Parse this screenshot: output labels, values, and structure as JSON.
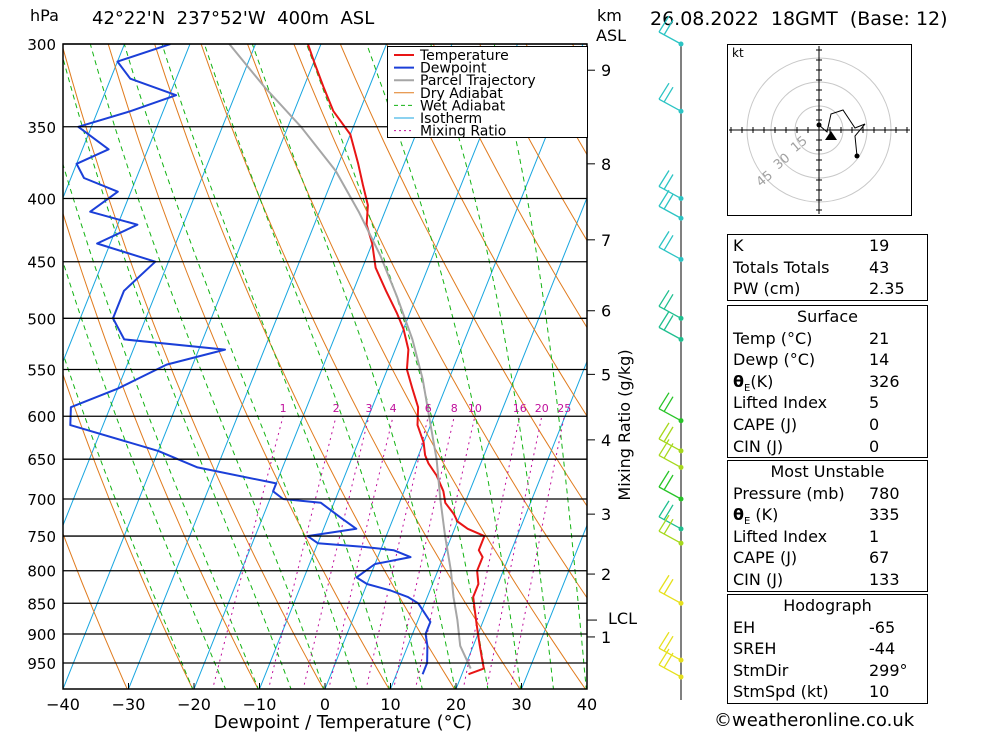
{
  "header": {
    "pressure_unit": "hPa",
    "location": "42°22'N  237°52'W  400m  ASL",
    "km_label": "km",
    "asl_label": "ASL",
    "datetime": "26.08.2022  18GMT  (Base: 12)"
  },
  "chart_data": {
    "type": "line",
    "title": "Skew-T log-P diagram",
    "xlabel": "Dewpoint / Temperature (°C)",
    "ylabel": "hPa",
    "x_ticks": [
      -40,
      -30,
      -20,
      -10,
      0,
      10,
      20,
      30,
      40
    ],
    "x_tick_labels": [
      "−40",
      "−30",
      "−20",
      "−10",
      "0",
      "10",
      "20",
      "30",
      "40"
    ],
    "p_ticks": [
      300,
      350,
      400,
      450,
      500,
      550,
      600,
      650,
      700,
      750,
      800,
      850,
      900,
      950
    ],
    "p_range": [
      300,
      1000
    ],
    "km_ticks": [
      {
        "label": "9",
        "p": 315
      },
      {
        "label": "8",
        "p": 375
      },
      {
        "label": "7",
        "p": 432
      },
      {
        "label": "6",
        "p": 493
      },
      {
        "label": "5",
        "p": 555
      },
      {
        "label": "4",
        "p": 627
      },
      {
        "label": "3",
        "p": 720
      },
      {
        "label": "2",
        "p": 805
      },
      {
        "label": "1",
        "p": 905
      }
    ],
    "lcl": {
      "label": "LCL",
      "p": 877
    },
    "mixing_ratio_label": "Mixing Ratio (g/kg)",
    "mixing_ratios": [
      "1",
      "2",
      "3",
      "4",
      "6",
      "8",
      "10",
      "16",
      "20",
      "25"
    ],
    "legend": [
      "Temperature",
      "Dewpoint",
      "Parcel Trajectory",
      "Dry Adiabat",
      "Wet Adiabat",
      "Isotherm",
      "Mixing Ratio"
    ],
    "series": [
      {
        "name": "Temperature",
        "points": [
          [
            21,
            970
          ],
          [
            23,
            960
          ],
          [
            22,
            940
          ],
          [
            21,
            920
          ],
          [
            20,
            900
          ],
          [
            19,
            880
          ],
          [
            18,
            860
          ],
          [
            17,
            840
          ],
          [
            17,
            820
          ],
          [
            16,
            800
          ],
          [
            16,
            780
          ],
          [
            15,
            770
          ],
          [
            15,
            750
          ],
          [
            12,
            740
          ],
          [
            10,
            730
          ],
          [
            9,
            720
          ],
          [
            7,
            705
          ],
          [
            6,
            690
          ],
          [
            4,
            670
          ],
          [
            2,
            655
          ],
          [
            1,
            645
          ],
          [
            0,
            630
          ],
          [
            -2,
            610
          ],
          [
            -3,
            590
          ],
          [
            -5,
            570
          ],
          [
            -7,
            550
          ],
          [
            -8,
            530
          ],
          [
            -10,
            510
          ],
          [
            -12,
            495
          ],
          [
            -15,
            475
          ],
          [
            -18,
            455
          ],
          [
            -20,
            435
          ],
          [
            -22,
            420
          ],
          [
            -23,
            405
          ],
          [
            -25,
            390
          ],
          [
            -27,
            375
          ],
          [
            -30,
            355
          ],
          [
            -34,
            340
          ],
          [
            -37,
            325
          ],
          [
            -40,
            310
          ],
          [
            -42,
            300
          ]
        ]
      },
      {
        "name": "Dewpoint",
        "points": [
          [
            14,
            970
          ],
          [
            14,
            950
          ],
          [
            13,
            920
          ],
          [
            12,
            900
          ],
          [
            12,
            880
          ],
          [
            10,
            860
          ],
          [
            9,
            850
          ],
          [
            7,
            840
          ],
          [
            4,
            830
          ],
          [
            0,
            820
          ],
          [
            -2,
            810
          ],
          [
            0,
            790
          ],
          [
            5,
            780
          ],
          [
            2,
            770
          ],
          [
            -3,
            765
          ],
          [
            -10,
            760
          ],
          [
            -12,
            750
          ],
          [
            -5,
            740
          ],
          [
            -8,
            725
          ],
          [
            -12,
            705
          ],
          [
            -18,
            700
          ],
          [
            -20,
            690
          ],
          [
            -20,
            680
          ],
          [
            -33,
            660
          ],
          [
            -40,
            640
          ],
          [
            -55,
            610
          ],
          [
            -56,
            590
          ],
          [
            -50,
            570
          ],
          [
            -44,
            545
          ],
          [
            -36,
            530
          ],
          [
            -52,
            520
          ],
          [
            -55,
            500
          ],
          [
            -55,
            475
          ],
          [
            -52,
            450
          ],
          [
            -62,
            435
          ],
          [
            -57,
            420
          ],
          [
            -65,
            410
          ],
          [
            -62,
            395
          ],
          [
            -68,
            385
          ],
          [
            -70,
            375
          ],
          [
            -66,
            365
          ],
          [
            -72,
            350
          ],
          [
            -65,
            340
          ],
          [
            -59,
            330
          ],
          [
            -67,
            320
          ],
          [
            -70,
            310
          ],
          [
            -63,
            300
          ]
        ]
      },
      {
        "name": "Parcel Trajectory",
        "points": [
          [
            21,
            960
          ],
          [
            18,
            920
          ],
          [
            16,
            877
          ],
          [
            14,
            840
          ],
          [
            12,
            800
          ],
          [
            9,
            750
          ],
          [
            6,
            700
          ],
          [
            3,
            650
          ],
          [
            0,
            610
          ],
          [
            -4,
            560
          ],
          [
            -8,
            520
          ],
          [
            -13,
            480
          ],
          [
            -18,
            445
          ],
          [
            -24,
            410
          ],
          [
            -30,
            380
          ],
          [
            -38,
            350
          ],
          [
            -46,
            325
          ],
          [
            -54,
            300
          ]
        ]
      }
    ],
    "legend_colors": {
      "Temperature": "#e81515",
      "Dewpoint": "#1b3fd8",
      "Parcel Trajectory": "#a6a6a6",
      "Dry Adiabat": "#e07b1e",
      "Wet Adiabat": "#13b313",
      "Isotherm": "#19a6e0",
      "Mixing Ratio": "#c0109c"
    },
    "wind_barbs": [
      {
        "p": 300,
        "color": "#2cc4c4"
      },
      {
        "p": 340,
        "color": "#2cc4c4"
      },
      {
        "p": 400,
        "color": "#2cc4c4"
      },
      {
        "p": 415,
        "color": "#2cc4c4"
      },
      {
        "p": 448,
        "color": "#2cc4c4"
      },
      {
        "p": 500,
        "color": "#1fbf8f"
      },
      {
        "p": 520,
        "color": "#1fbf8f"
      },
      {
        "p": 605,
        "color": "#28c428"
      },
      {
        "p": 640,
        "color": "#a6d81c"
      },
      {
        "p": 660,
        "color": "#a6d81c"
      },
      {
        "p": 700,
        "color": "#28c428"
      },
      {
        "p": 740,
        "color": "#1fbf8f"
      },
      {
        "p": 760,
        "color": "#a6d81c"
      },
      {
        "p": 850,
        "color": "#e6e01c"
      },
      {
        "p": 945,
        "color": "#e6e01c"
      },
      {
        "p": 975,
        "color": "#e6e01c"
      }
    ]
  },
  "hodograph": {
    "unit": "kt",
    "rings": [
      "15",
      "30",
      "45"
    ]
  },
  "stats": {
    "k_label": "K",
    "k": "19",
    "tt_label": "Totals Totals",
    "tt": "43",
    "pw_label": "PW (cm)",
    "pw": "2.35",
    "surface_title": "Surface",
    "temp_label": "Temp (°C)",
    "temp": "21",
    "dewp_label": "Dewp (°C)",
    "dewp": "14",
    "theta_label": "(K)",
    "theta": "326",
    "li_label": "Lifted Index",
    "li": "5",
    "cape_label": "CAPE (J)",
    "cape": "0",
    "cin_label": "CIN (J)",
    "cin": "0",
    "mu_title": "Most Unstable",
    "mu_p_label": "Pressure (mb)",
    "mu_p": "780",
    "mu_theta_label": "(K)",
    "mu_theta": "335",
    "mu_li_label": "Lifted Index",
    "mu_li": "1",
    "mu_cape_label": "CAPE (J)",
    "mu_cape": "67",
    "mu_cin_label": "CIN (J)",
    "mu_cin": "133",
    "hodo_title": "Hodograph",
    "eh_label": "EH",
    "eh": "-65",
    "srEH_label": "SREH",
    "sreh": "-44",
    "stmdir_label": "StmDir",
    "stmdir": "299°",
    "stmspd_label": "StmSpd (kt)",
    "stmspd": "10"
  },
  "footer": {
    "credit": "©weatheronline.co.uk"
  }
}
